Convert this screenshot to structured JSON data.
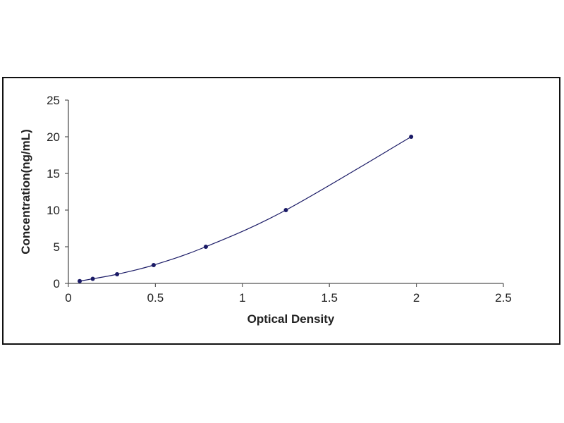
{
  "chart_data": {
    "type": "scatter",
    "title": "",
    "xlabel": "Optical Density",
    "ylabel": "Concentration(ng/mL)",
    "xlim": [
      0,
      2.5
    ],
    "ylim": [
      0,
      25
    ],
    "x_ticks": [
      "0",
      "0.5",
      "1",
      "1.5",
      "2",
      "2.5"
    ],
    "y_ticks": [
      "0",
      "5",
      "10",
      "15",
      "20",
      "25"
    ],
    "grid": false,
    "legend": "none",
    "series": [
      {
        "points": [
          {
            "x": 0.065,
            "y": 0.31
          },
          {
            "x": 0.14,
            "y": 0.63
          },
          {
            "x": 0.28,
            "y": 1.25
          },
          {
            "x": 0.49,
            "y": 2.5
          },
          {
            "x": 0.79,
            "y": 5
          },
          {
            "x": 1.25,
            "y": 10
          },
          {
            "x": 1.97,
            "y": 20
          }
        ],
        "fit": "smooth curve through points"
      }
    ],
    "colors": {
      "marker": "#1a1a66",
      "curve": "#1a1a66",
      "axis": "#555555"
    }
  }
}
